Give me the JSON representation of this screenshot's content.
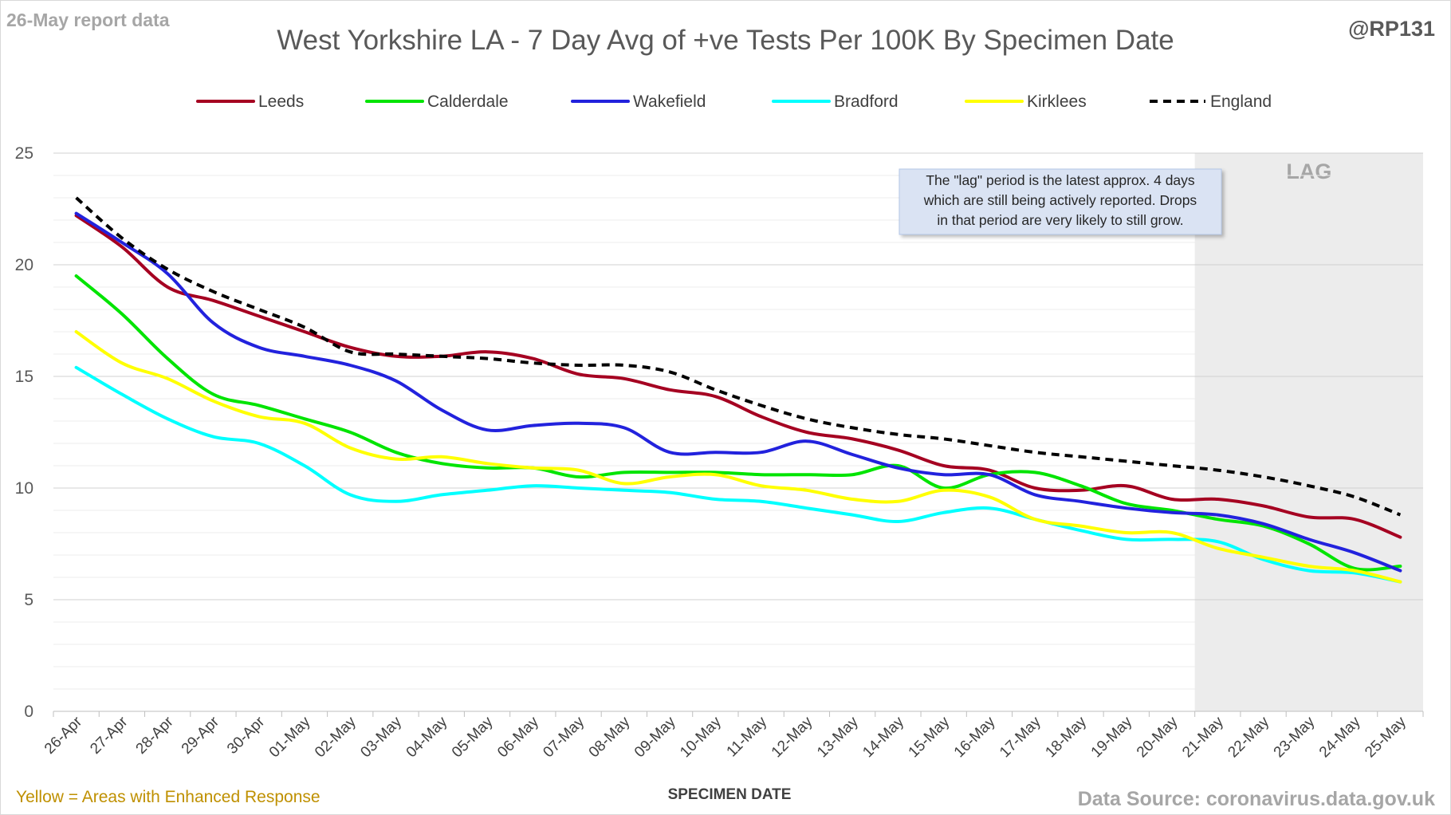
{
  "header": {
    "report_label": "26-May report data",
    "handle": "@RP131"
  },
  "footer": {
    "left_note": "Yellow = Areas with Enhanced Response",
    "source": "Data Source: coronavirus.data.gov.uk"
  },
  "annotation": {
    "lines": [
      "The \"lag\" period is the latest approx. 4 days",
      "which are still being actively reported.  Drops",
      "in that period are very likely to still grow."
    ]
  },
  "chart_data": {
    "type": "line",
    "title": "West Yorkshire LA - 7 Day Avg of +ve Tests Per 100K By Specimen Date",
    "xlabel": "SPECIMEN DATE",
    "ylabel": "",
    "ylim": [
      0,
      25
    ],
    "yticks": [
      0,
      5,
      10,
      15,
      20,
      25
    ],
    "grid": true,
    "legend_position": "top",
    "lag_region": {
      "from": "21-May",
      "to": "25-May",
      "label": "LAG"
    },
    "categories": [
      "26-Apr",
      "27-Apr",
      "28-Apr",
      "29-Apr",
      "30-Apr",
      "01-May",
      "02-May",
      "03-May",
      "04-May",
      "05-May",
      "06-May",
      "07-May",
      "08-May",
      "09-May",
      "10-May",
      "11-May",
      "12-May",
      "13-May",
      "14-May",
      "15-May",
      "16-May",
      "17-May",
      "18-May",
      "19-May",
      "20-May",
      "21-May",
      "22-May",
      "23-May",
      "24-May",
      "25-May"
    ],
    "series": [
      {
        "name": "Leeds",
        "color": "#a50021",
        "dashed": false,
        "values": [
          22.2,
          20.8,
          19.0,
          18.4,
          17.7,
          17.0,
          16.3,
          15.9,
          15.9,
          16.1,
          15.8,
          15.1,
          14.9,
          14.4,
          14.1,
          13.2,
          12.5,
          12.2,
          11.7,
          11.0,
          10.8,
          10.0,
          9.9,
          10.1,
          9.5,
          9.5,
          9.2,
          8.7,
          8.6,
          7.8
        ]
      },
      {
        "name": "Calderdale",
        "color": "#00e400",
        "dashed": false,
        "values": [
          19.5,
          17.8,
          15.8,
          14.2,
          13.7,
          13.1,
          12.5,
          11.6,
          11.1,
          10.9,
          10.9,
          10.5,
          10.7,
          10.7,
          10.7,
          10.6,
          10.6,
          10.6,
          11.0,
          10.0,
          10.6,
          10.7,
          10.1,
          9.3,
          9.0,
          8.6,
          8.3,
          7.5,
          6.4,
          6.5
        ]
      },
      {
        "name": "Wakefield",
        "color": "#2222dd",
        "dashed": false,
        "values": [
          22.3,
          21.0,
          19.6,
          17.4,
          16.3,
          15.9,
          15.5,
          14.8,
          13.5,
          12.6,
          12.8,
          12.9,
          12.7,
          11.6,
          11.6,
          11.6,
          12.1,
          11.5,
          10.9,
          10.6,
          10.6,
          9.7,
          9.4,
          9.1,
          8.9,
          8.8,
          8.4,
          7.7,
          7.1,
          6.3
        ]
      },
      {
        "name": "Bradford",
        "color": "#00ffff",
        "dashed": false,
        "values": [
          15.4,
          14.2,
          13.1,
          12.3,
          12.0,
          11.0,
          9.7,
          9.4,
          9.7,
          9.9,
          10.1,
          10.0,
          9.9,
          9.8,
          9.5,
          9.4,
          9.1,
          8.8,
          8.5,
          8.9,
          9.1,
          8.6,
          8.1,
          7.7,
          7.7,
          7.6,
          6.8,
          6.3,
          6.2,
          5.8
        ]
      },
      {
        "name": "Kirklees",
        "color": "#ffff00",
        "dashed": false,
        "values": [
          17.0,
          15.6,
          14.9,
          13.9,
          13.2,
          12.9,
          11.8,
          11.3,
          11.4,
          11.1,
          10.9,
          10.8,
          10.2,
          10.5,
          10.6,
          10.1,
          9.9,
          9.5,
          9.4,
          9.9,
          9.6,
          8.6,
          8.3,
          8.0,
          8.0,
          7.3,
          6.9,
          6.5,
          6.3,
          5.8
        ]
      },
      {
        "name": "England",
        "color": "#000000",
        "dashed": true,
        "values": [
          23.0,
          21.2,
          19.8,
          18.8,
          18.0,
          17.2,
          16.1,
          16.0,
          15.9,
          15.8,
          15.6,
          15.5,
          15.5,
          15.2,
          14.4,
          13.7,
          13.1,
          12.7,
          12.4,
          12.2,
          11.9,
          11.6,
          11.4,
          11.2,
          11.0,
          10.8,
          10.5,
          10.1,
          9.6,
          8.8
        ]
      }
    ]
  }
}
